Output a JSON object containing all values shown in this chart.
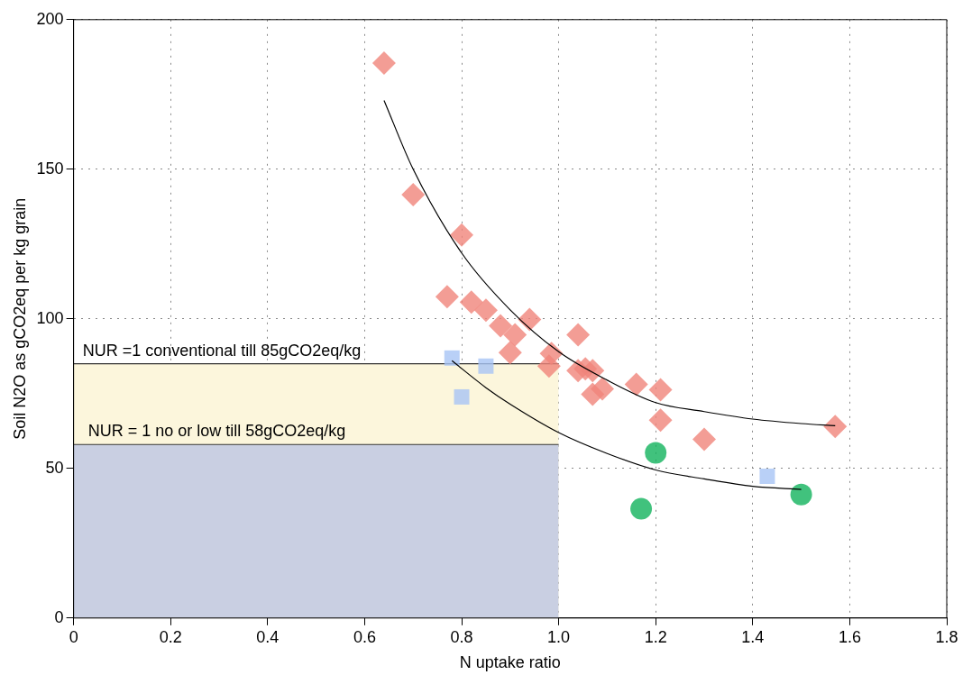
{
  "chart_data": {
    "type": "scatter",
    "xlabel": "N uptake ratio",
    "ylabel": "Soil N2O as gCO2eq per kg grain",
    "xlim": [
      0,
      1.8
    ],
    "xticks": [
      0,
      0.2,
      0.4,
      0.6,
      0.8,
      {
        "value": 1,
        "label": "1.0"
      },
      1.2,
      1.4,
      1.6,
      1.8
    ],
    "ylim": [
      0,
      200
    ],
    "yticks": [
      0,
      50,
      100,
      150,
      200
    ],
    "grid": true,
    "legend": false,
    "annotations": [
      "NUR =1 conventional till 85gCO2eq/kg",
      "NUR = 1 no or low till 58gCO2eq/kg"
    ],
    "series": [
      {
        "type": "area",
        "color": "#fcf6dc",
        "x": [
          0,
          1
        ],
        "values": [
          85,
          85
        ]
      },
      {
        "type": "area",
        "color": "#c9cfe2",
        "x": [
          0,
          1
        ],
        "values": [
          58,
          58
        ]
      },
      {
        "marker": "diamond",
        "color": "#f0857a",
        "x": [
          0.64,
          0.7,
          0.8,
          0.77,
          0.82,
          0.85,
          0.88,
          0.91,
          0.94,
          0.9,
          1.04,
          0.985,
          0.98,
          1.04,
          1.055,
          1.07,
          1.09,
          1.07,
          1.16,
          1.21,
          1.21,
          1.3,
          1.57
        ],
        "values": [
          185.5,
          141.5,
          128,
          107.4,
          105.6,
          102.9,
          97.7,
          94.7,
          99.8,
          88.7,
          94.7,
          88.4,
          84.2,
          82.7,
          83.3,
          82.7,
          76.6,
          74.8,
          78.1,
          76.3,
          66.1,
          59.7,
          64
        ]
      },
      {
        "marker": "square",
        "color": "#a8c4f5",
        "x": [
          0.78,
          0.85,
          0.8,
          1.43
        ],
        "values": [
          86.9,
          84.2,
          73.9,
          47.4
        ]
      },
      {
        "marker": "circle",
        "color": "#11b35c",
        "x": [
          1.2,
          1.17,
          1.5
        ],
        "values": [
          55.2,
          36.5,
          41.3
        ]
      },
      {
        "type": "line",
        "color": "#000000",
        "x": [
          0.64,
          0.7,
          0.8,
          0.9,
          1.0,
          1.1,
          1.2,
          1.3,
          1.4,
          1.5,
          1.57
        ],
        "values": [
          173,
          150,
          122,
          103,
          89,
          79.5,
          72,
          69,
          66.5,
          65,
          64.3
        ]
      },
      {
        "type": "line",
        "color": "#000000",
        "x": [
          0.78,
          0.85,
          0.9,
          1.0,
          1.1,
          1.2,
          1.3,
          1.4,
          1.5
        ],
        "values": [
          86,
          77,
          71.5,
          62,
          55,
          49.5,
          46.5,
          44,
          43
        ]
      }
    ]
  }
}
